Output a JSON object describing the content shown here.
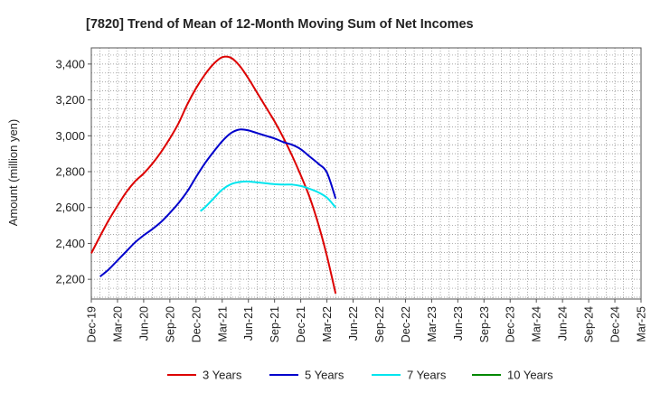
{
  "chart_data": {
    "type": "line",
    "title": "[7820]  Trend of Mean of 12-Month Moving Sum of Net Incomes",
    "xlabel": "",
    "ylabel": "Amount (million yen)",
    "x_ticks": [
      "Dec-19",
      "Mar-20",
      "Jun-20",
      "Sep-20",
      "Dec-20",
      "Mar-21",
      "Jun-21",
      "Sep-21",
      "Dec-21",
      "Mar-22",
      "Jun-22",
      "Sep-22",
      "Dec-22",
      "Mar-23",
      "Jun-23",
      "Sep-23",
      "Dec-23",
      "Mar-24",
      "Jun-24",
      "Sep-24",
      "Dec-24",
      "Mar-25"
    ],
    "y_ticks": [
      2200,
      2400,
      2600,
      2800,
      3000,
      3200,
      3400
    ],
    "ylim": [
      2090,
      3490
    ],
    "grid": true,
    "legend_position": "bottom",
    "series": [
      {
        "name": "3 Years",
        "color": "#dd0000",
        "points": [
          [
            0,
            2345
          ],
          [
            1,
            2440
          ],
          [
            2,
            2530
          ],
          [
            3,
            2610
          ],
          [
            4,
            2685
          ],
          [
            5,
            2745
          ],
          [
            6,
            2790
          ],
          [
            7,
            2845
          ],
          [
            8,
            2910
          ],
          [
            9,
            2985
          ],
          [
            10,
            3070
          ],
          [
            11,
            3175
          ],
          [
            12,
            3265
          ],
          [
            13,
            3340
          ],
          [
            14,
            3400
          ],
          [
            15,
            3438
          ],
          [
            16,
            3435
          ],
          [
            17,
            3390
          ],
          [
            18,
            3320
          ],
          [
            19,
            3240
          ],
          [
            20,
            3160
          ],
          [
            21,
            3080
          ],
          [
            22,
            2990
          ],
          [
            23,
            2890
          ],
          [
            24,
            2780
          ],
          [
            25,
            2660
          ],
          [
            26,
            2510
          ],
          [
            27,
            2330
          ],
          [
            28,
            2120
          ]
        ]
      },
      {
        "name": "5 Years",
        "color": "#0000cc",
        "points": [
          [
            1,
            2215
          ],
          [
            2,
            2255
          ],
          [
            3,
            2305
          ],
          [
            4,
            2355
          ],
          [
            5,
            2405
          ],
          [
            6,
            2445
          ],
          [
            7,
            2480
          ],
          [
            8,
            2520
          ],
          [
            9,
            2570
          ],
          [
            10,
            2625
          ],
          [
            11,
            2690
          ],
          [
            12,
            2770
          ],
          [
            13,
            2845
          ],
          [
            14,
            2910
          ],
          [
            15,
            2970
          ],
          [
            16,
            3015
          ],
          [
            17,
            3035
          ],
          [
            18,
            3030
          ],
          [
            19,
            3015
          ],
          [
            20,
            3000
          ],
          [
            21,
            2985
          ],
          [
            22,
            2965
          ],
          [
            23,
            2950
          ],
          [
            24,
            2925
          ],
          [
            25,
            2885
          ],
          [
            26,
            2845
          ],
          [
            27,
            2795
          ],
          [
            28,
            2650
          ]
        ]
      },
      {
        "name": "7 Years",
        "color": "#00e5ee",
        "points": [
          [
            12.5,
            2580
          ],
          [
            13,
            2600
          ],
          [
            14,
            2650
          ],
          [
            15,
            2700
          ],
          [
            16,
            2730
          ],
          [
            17,
            2742
          ],
          [
            18,
            2745
          ],
          [
            19,
            2740
          ],
          [
            20,
            2735
          ],
          [
            21,
            2730
          ],
          [
            22,
            2728
          ],
          [
            23,
            2728
          ],
          [
            24,
            2720
          ],
          [
            25,
            2705
          ],
          [
            26,
            2685
          ],
          [
            27,
            2655
          ],
          [
            28,
            2600
          ]
        ]
      },
      {
        "name": "10 Years",
        "color": "#008800",
        "points": []
      }
    ]
  }
}
